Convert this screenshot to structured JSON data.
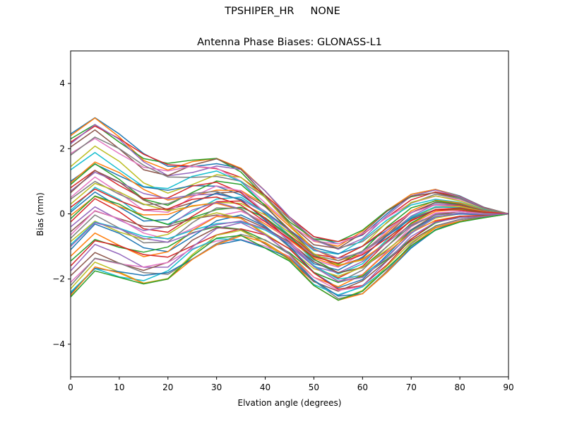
{
  "figure": {
    "suptitle": "TPSHIPER_HR     NONE"
  },
  "chart_data": {
    "type": "line",
    "title": "Antenna Phase Biases: GLONASS-L1",
    "xlabel": "Elvation angle (degrees)",
    "ylabel": "Bias (mm)",
    "xlim": [
      0,
      90
    ],
    "ylim": [
      -5,
      5
    ],
    "xticks": [
      0,
      10,
      20,
      30,
      40,
      50,
      60,
      70,
      80,
      90
    ],
    "yticks": [
      -4,
      -2,
      0,
      2,
      4
    ],
    "ytick_labels": [
      "−4",
      "−2",
      "0",
      "2",
      "4"
    ],
    "grid": false,
    "legend": "none",
    "x": [
      0,
      5,
      10,
      15,
      20,
      25,
      30,
      35,
      40,
      45,
      50,
      55,
      60,
      65,
      70,
      75,
      80,
      85,
      90
    ],
    "series_count": 45,
    "top_envelope": [
      2.45,
      2.95,
      2.45,
      1.85,
      1.55,
      1.65,
      1.7,
      1.4,
      0.7,
      -0.1,
      -0.7,
      -0.85,
      -0.5,
      0.1,
      0.6,
      0.75,
      0.55,
      0.2,
      0.0
    ],
    "bottom_envelope": [
      -2.55,
      -1.75,
      -1.95,
      -2.15,
      -2.0,
      -1.4,
      -0.95,
      -0.8,
      -1.05,
      -1.45,
      -2.2,
      -2.65,
      -2.45,
      -1.8,
      -1.05,
      -0.5,
      -0.25,
      -0.12,
      0.0
    ],
    "start_values": [
      2.45,
      2.4,
      2.3,
      2.2,
      2.15,
      2.05,
      1.85,
      1.8,
      1.45,
      1.35,
      1.0,
      0.95,
      0.9,
      0.8,
      0.7,
      0.65,
      0.5,
      0.45,
      0.3,
      0.1,
      0.05,
      -0.05,
      -0.15,
      -0.25,
      -0.4,
      -0.55,
      -0.65,
      -0.75,
      -0.85,
      -0.95,
      -1.1,
      -1.3,
      -1.45,
      -1.6,
      -1.75,
      -1.9,
      -2.1,
      -2.2,
      -2.3,
      -2.4,
      -2.45,
      -2.5,
      -2.55,
      0.2,
      -1.0
    ],
    "colors": [
      "#1f77b4",
      "#ff7f0e",
      "#2ca02c",
      "#d62728",
      "#9467bd",
      "#8c564b",
      "#e377c2",
      "#7f7f7f",
      "#bcbd22",
      "#17becf"
    ]
  }
}
